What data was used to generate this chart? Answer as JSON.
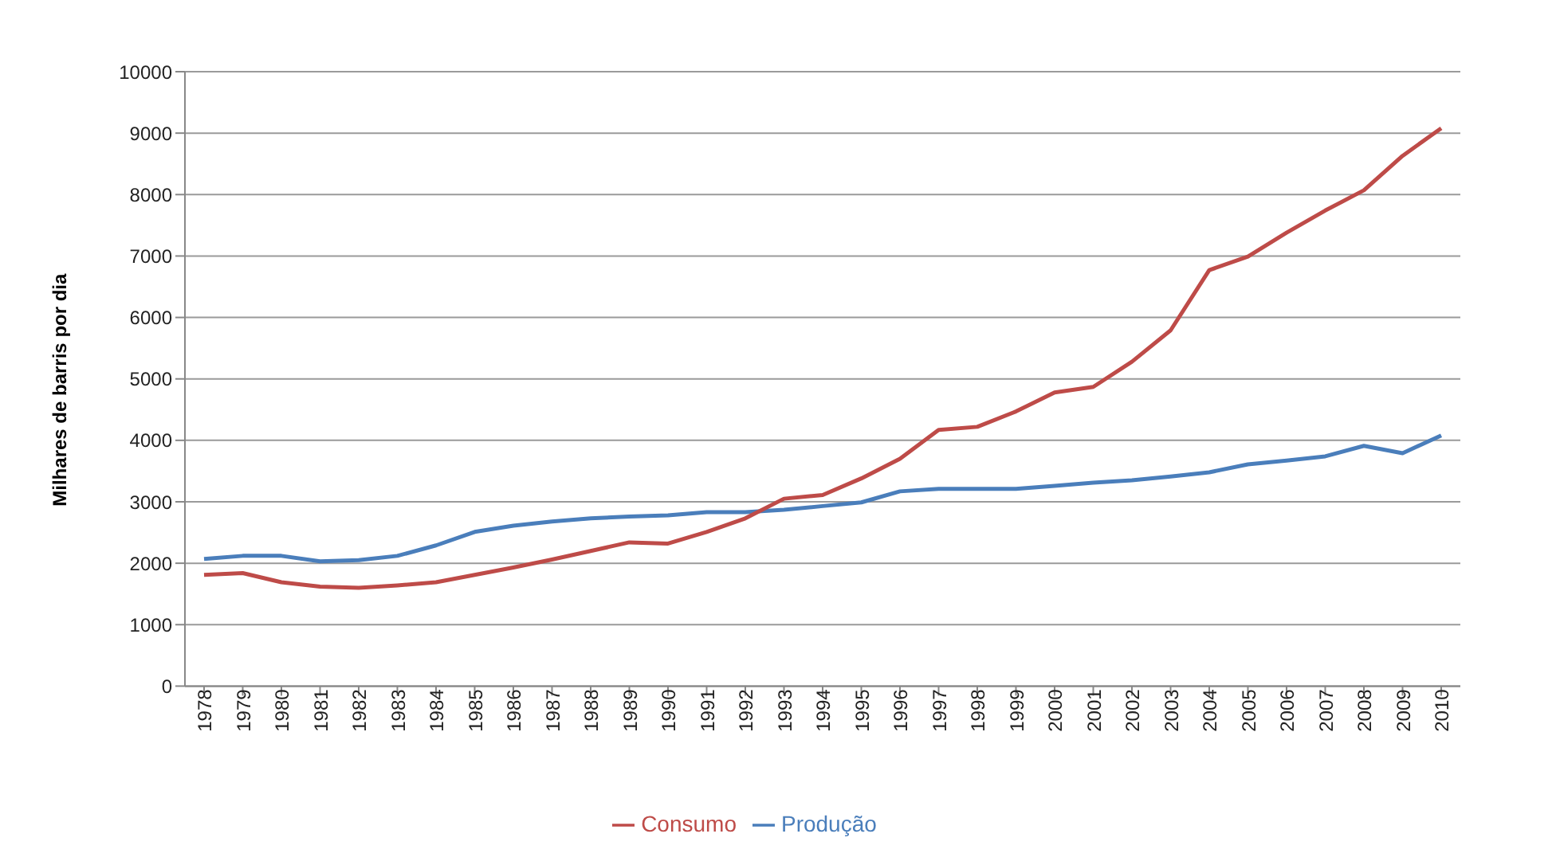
{
  "chart_data": {
    "type": "line",
    "ylabel": "Milhares de barris por dia",
    "categories": [
      "1978",
      "1979",
      "1980",
      "1981",
      "1982",
      "1983",
      "1984",
      "1985",
      "1986",
      "1987",
      "1988",
      "1989",
      "1990",
      "1991",
      "1992",
      "1993",
      "1994",
      "1995",
      "1996",
      "1997",
      "1998",
      "1999",
      "2000",
      "2001",
      "2002",
      "2003",
      "2004",
      "2005",
      "2006",
      "2007",
      "2008",
      "2009",
      "2010"
    ],
    "series": [
      {
        "name": "Produção",
        "color": "#4a7ebb",
        "values": [
          2070,
          2120,
          2120,
          2030,
          2050,
          2120,
          2290,
          2510,
          2610,
          2680,
          2730,
          2760,
          2780,
          2830,
          2830,
          2870,
          2930,
          2990,
          3170,
          3210,
          3210,
          3210,
          3260,
          3310,
          3350,
          3410,
          3480,
          3610,
          3670,
          3740,
          3910,
          3790,
          4080
        ]
      },
      {
        "name": "Consumo",
        "color": "#be4b48",
        "values": [
          1810,
          1840,
          1690,
          1620,
          1600,
          1640,
          1690,
          1810,
          1930,
          2060,
          2200,
          2340,
          2320,
          2510,
          2730,
          3050,
          3110,
          3380,
          3700,
          4170,
          4220,
          4470,
          4780,
          4870,
          5280,
          5790,
          6770,
          6990,
          7380,
          7740,
          8070,
          8630,
          9080
        ]
      }
    ],
    "ylim": [
      0,
      10000
    ],
    "yticks": [
      0,
      1000,
      2000,
      3000,
      4000,
      5000,
      6000,
      7000,
      8000,
      9000,
      10000
    ],
    "grid": "y",
    "legend": "bottom",
    "marker": "none",
    "line_style": "solid"
  }
}
